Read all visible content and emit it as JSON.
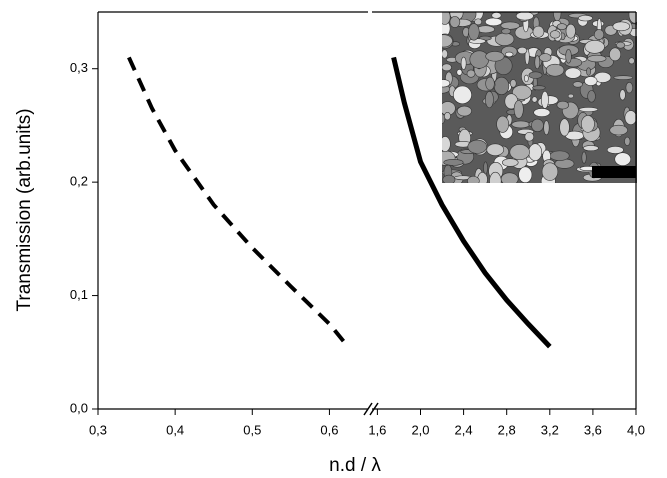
{
  "chart_data": {
    "type": "line",
    "x_label": "n.d / λ",
    "y_label": "Transmission (arb.units)",
    "ylim": [
      0,
      0.35
    ],
    "yticks": [
      {
        "value": 0,
        "label": "0,0"
      },
      {
        "value": 0.1,
        "label": "0,1"
      },
      {
        "value": 0.2,
        "label": "0,2"
      },
      {
        "value": 0.3,
        "label": "0,3"
      }
    ],
    "x_axis_segments": [
      {
        "xlim": [
          0.3,
          0.65
        ],
        "xticks": [
          {
            "value": 0.3,
            "label": "0,3"
          },
          {
            "value": 0.4,
            "label": "0,4"
          },
          {
            "value": 0.5,
            "label": "0,5"
          },
          {
            "value": 0.6,
            "label": "0,6"
          }
        ]
      },
      {
        "xlim": [
          1.55,
          4.0
        ],
        "xticks": [
          {
            "value": 1.6,
            "label": "1,6"
          },
          {
            "value": 2.0,
            "label": "2,0"
          },
          {
            "value": 2.4,
            "label": "2,4"
          },
          {
            "value": 2.8,
            "label": "2,8"
          },
          {
            "value": 3.2,
            "label": "3,2"
          },
          {
            "value": 3.6,
            "label": "3,6"
          },
          {
            "value": 4.0,
            "label": "4,0"
          }
        ]
      }
    ],
    "series": [
      {
        "segment": 0,
        "style": "dashed",
        "color": "#000000",
        "x": [
          0.34,
          0.37,
          0.4,
          0.45,
          0.5,
          0.55,
          0.6,
          0.624
        ],
        "values": [
          0.31,
          0.265,
          0.228,
          0.18,
          0.142,
          0.108,
          0.075,
          0.055
        ]
      },
      {
        "segment": 1,
        "style": "solid",
        "color": "#000000",
        "x": [
          1.75,
          1.85,
          2.0,
          2.2,
          2.4,
          2.6,
          2.8,
          3.0,
          3.2
        ],
        "values": [
          0.31,
          0.27,
          0.218,
          0.18,
          0.148,
          0.12,
          0.096,
          0.075,
          0.055
        ]
      }
    ]
  }
}
